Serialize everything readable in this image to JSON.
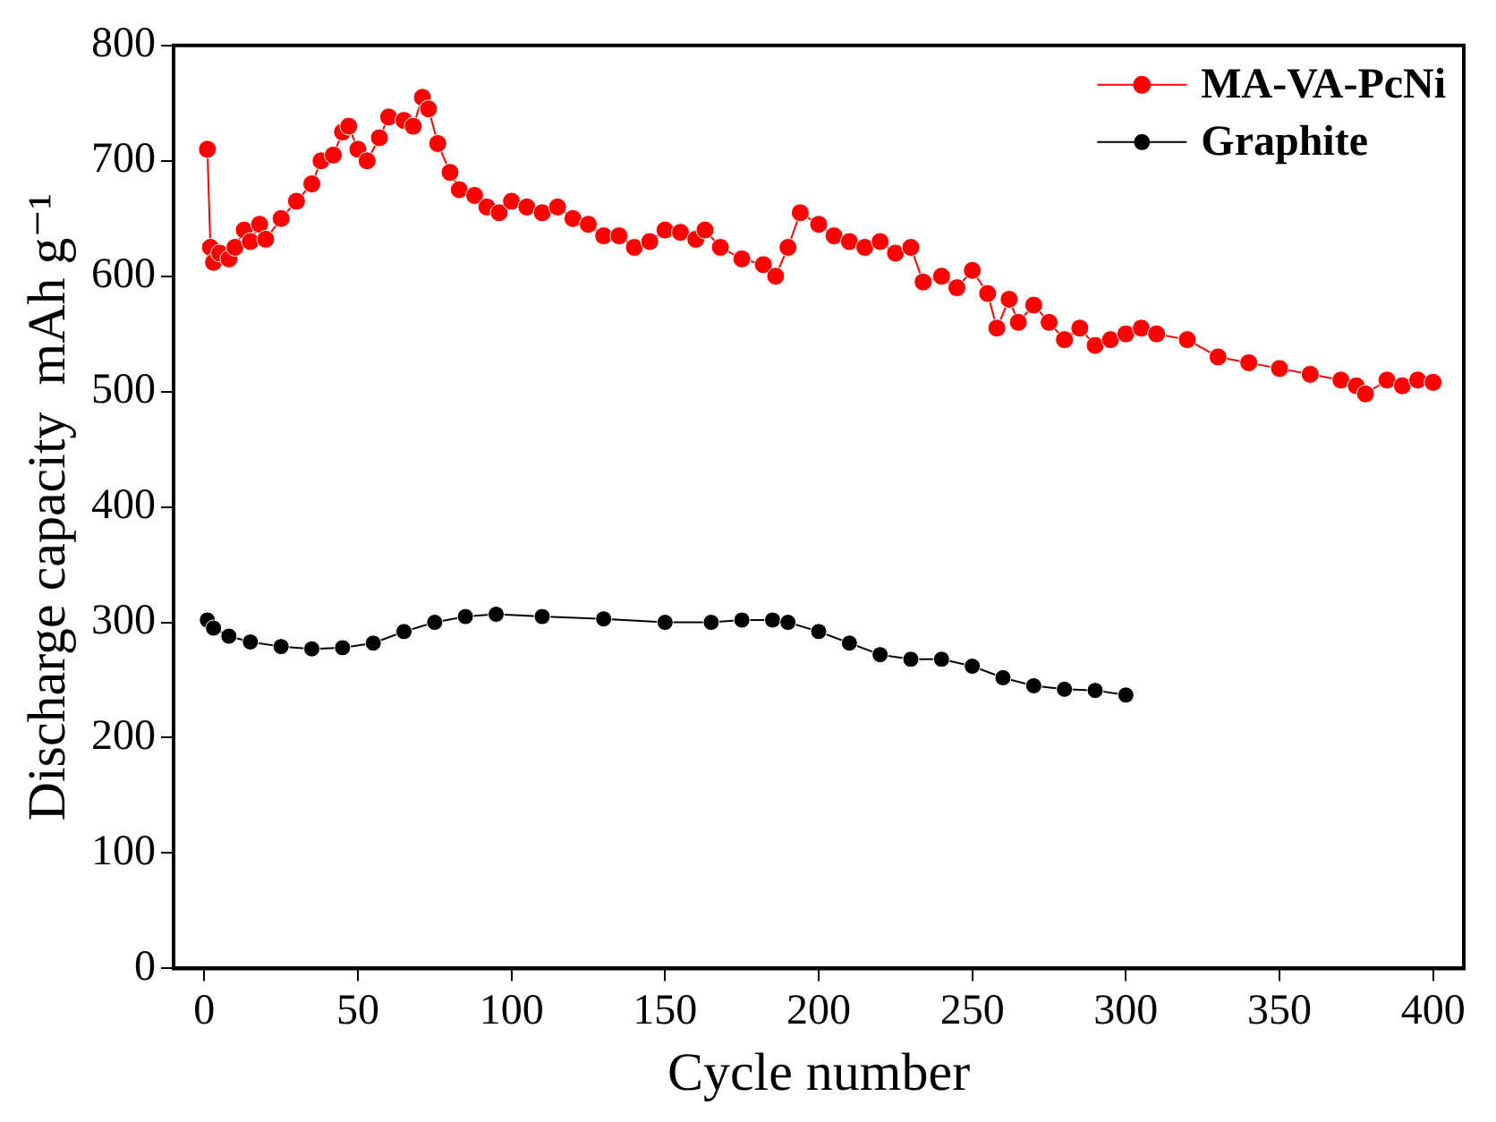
{
  "chart_data": {
    "type": "line",
    "xlabel": "Cycle number",
    "ylabel": "Discharge capacity  mAh g⁻¹",
    "xlim": [
      -10,
      410
    ],
    "ylim": [
      0,
      800
    ],
    "xticks": [
      0,
      50,
      100,
      150,
      200,
      250,
      300,
      350,
      400
    ],
    "yticks": [
      0,
      100,
      200,
      300,
      400,
      500,
      600,
      700,
      800
    ],
    "grid": false,
    "legend": "top right",
    "marker": "circle",
    "line_style": "solid",
    "series": [
      {
        "name": "MA-VA-PcNi",
        "color": "#ff0000",
        "x": [
          1,
          2,
          3,
          5,
          8,
          10,
          13,
          15,
          18,
          20,
          25,
          30,
          35,
          38,
          42,
          45,
          47,
          50,
          53,
          57,
          60,
          65,
          68,
          71,
          73,
          76,
          80,
          83,
          88,
          92,
          96,
          100,
          105,
          110,
          115,
          120,
          125,
          130,
          135,
          140,
          145,
          150,
          155,
          160,
          163,
          168,
          175,
          182,
          186,
          190,
          194,
          200,
          205,
          210,
          215,
          220,
          225,
          230,
          234,
          240,
          245,
          250,
          255,
          258,
          262,
          265,
          270,
          275,
          280,
          285,
          290,
          295,
          300,
          305,
          310,
          320,
          330,
          340,
          350,
          360,
          370,
          375,
          378,
          385,
          390,
          395,
          400
        ],
        "values": [
          710,
          625,
          612,
          620,
          615,
          625,
          640,
          630,
          645,
          632,
          650,
          665,
          680,
          700,
          705,
          725,
          730,
          710,
          700,
          720,
          738,
          735,
          730,
          755,
          745,
          715,
          690,
          675,
          670,
          660,
          655,
          665,
          660,
          655,
          660,
          650,
          645,
          635,
          635,
          625,
          630,
          640,
          638,
          632,
          640,
          625,
          615,
          610,
          600,
          625,
          655,
          645,
          635,
          630,
          625,
          630,
          620,
          625,
          595,
          600,
          590,
          605,
          585,
          555,
          580,
          560,
          575,
          560,
          545,
          555,
          540,
          545,
          550,
          555,
          550,
          545,
          530,
          525,
          520,
          515,
          510,
          505,
          498,
          510,
          505,
          510,
          508
        ]
      },
      {
        "name": "Graphite",
        "color": "#000000",
        "x": [
          1,
          3,
          8,
          15,
          25,
          35,
          45,
          55,
          65,
          75,
          85,
          95,
          110,
          130,
          150,
          165,
          175,
          185,
          190,
          200,
          210,
          220,
          230,
          240,
          250,
          260,
          270,
          280,
          290,
          300
        ],
        "values": [
          302,
          295,
          288,
          283,
          279,
          277,
          278,
          282,
          292,
          300,
          305,
          307,
          305,
          303,
          300,
          300,
          302,
          302,
          300,
          292,
          282,
          272,
          268,
          268,
          262,
          252,
          245,
          242,
          241,
          237
        ]
      }
    ]
  }
}
